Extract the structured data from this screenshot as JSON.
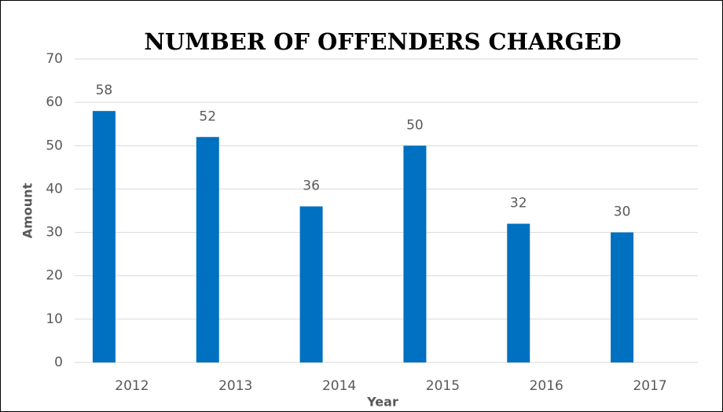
{
  "chart_data": {
    "type": "bar",
    "title": "NUMBER OF OFFENDERS CHARGED",
    "x_label": "Year",
    "y_label": "Amount",
    "categories": [
      "2012",
      "2013",
      "2014",
      "2015",
      "2016",
      "2017"
    ],
    "values": [
      58,
      52,
      36,
      50,
      32,
      30
    ],
    "color": "#0070c0",
    "ylim": [
      0,
      70
    ],
    "yticks": [
      0,
      10,
      20,
      30,
      40,
      50,
      60,
      70
    ],
    "grid": true
  }
}
